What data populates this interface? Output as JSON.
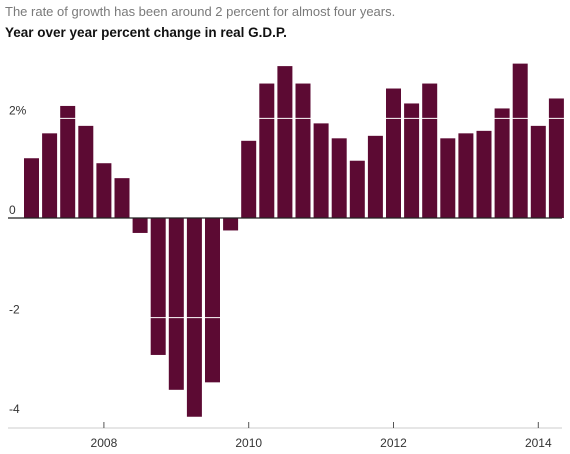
{
  "header": {
    "subtitle": "The rate of growth has been around 2 percent for almost four years.",
    "title": "Year over year percent change in real G.D.P."
  },
  "colors": {
    "bar": "#5c0a33",
    "gridline": "#ffffff",
    "zero_line": "#222222",
    "text": "#333333"
  },
  "chart_data": {
    "type": "bar",
    "title": "Year over year percent change in real G.D.P.",
    "subtitle": "The rate of growth has been around 2 percent for almost four years.",
    "xlabel": "",
    "ylabel": "",
    "ylim": [
      -4,
      3.2
    ],
    "y_ticks": [
      {
        "value": 2,
        "label": "2%"
      },
      {
        "value": 0,
        "label": "0"
      },
      {
        "value": -2,
        "label": "-2"
      },
      {
        "value": -4,
        "label": "-4"
      }
    ],
    "x_ticks": [
      {
        "quarter": "2008 Q1",
        "label": "2008"
      },
      {
        "quarter": "2010 Q1",
        "label": "2010"
      },
      {
        "quarter": "2012 Q1",
        "label": "2012"
      },
      {
        "quarter": "2014 Q1",
        "label": "2014"
      }
    ],
    "categories": [
      "2007 Q1",
      "2007 Q2",
      "2007 Q3",
      "2007 Q4",
      "2008 Q1",
      "2008 Q2",
      "2008 Q3",
      "2008 Q4",
      "2009 Q1",
      "2009 Q2",
      "2009 Q3",
      "2009 Q4",
      "2010 Q1",
      "2010 Q2",
      "2010 Q3",
      "2010 Q4",
      "2011 Q1",
      "2011 Q2",
      "2011 Q3",
      "2011 Q4",
      "2012 Q1",
      "2012 Q2",
      "2012 Q3",
      "2012 Q4",
      "2013 Q1",
      "2013 Q2",
      "2013 Q3",
      "2013 Q4",
      "2014 Q1",
      "2014 Q2"
    ],
    "values": [
      1.2,
      1.7,
      2.25,
      1.85,
      1.1,
      0.8,
      -0.3,
      -2.75,
      -3.45,
      -4.0,
      -3.3,
      -0.25,
      1.55,
      2.7,
      3.05,
      2.7,
      1.9,
      1.6,
      1.15,
      1.65,
      2.6,
      2.3,
      2.7,
      1.6,
      1.7,
      1.75,
      2.2,
      3.1,
      1.85,
      2.4
    ],
    "grid": "white gridlines drawn across bars at 2 and -2"
  }
}
